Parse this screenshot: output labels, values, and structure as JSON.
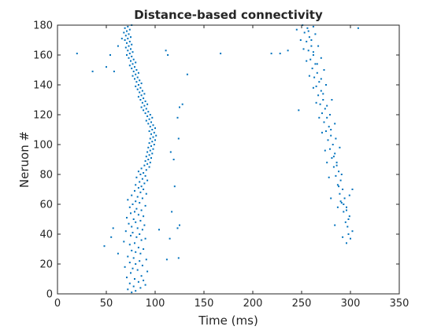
{
  "chart_data": {
    "type": "scatter",
    "title": "Distance-based connectivity",
    "xlabel": "Time (ms)",
    "ylabel": "Neruon #",
    "xlim": [
      0,
      350
    ],
    "ylim": [
      0,
      180
    ],
    "xticks": [
      0,
      50,
      100,
      150,
      200,
      250,
      300,
      350
    ],
    "yticks": [
      0,
      20,
      40,
      60,
      80,
      100,
      120,
      140,
      160,
      180
    ],
    "grid": false,
    "marker_color": "#0072BD",
    "series": [
      {
        "points": [
          [
            76,
            1
          ],
          [
            80,
            2
          ],
          [
            72,
            3
          ],
          [
            85,
            4
          ],
          [
            78,
            5
          ],
          [
            90,
            6
          ],
          [
            74,
            7
          ],
          [
            83,
            8
          ],
          [
            88,
            9
          ],
          [
            79,
            10
          ],
          [
            71,
            11
          ],
          [
            86,
            12
          ],
          [
            75,
            14
          ],
          [
            92,
            15
          ],
          [
            82,
            16
          ],
          [
            77,
            17
          ],
          [
            69,
            18
          ],
          [
            87,
            19
          ],
          [
            80,
            20
          ],
          [
            74,
            21
          ],
          [
            84,
            22
          ],
          [
            91,
            23
          ],
          [
            78,
            24
          ],
          [
            72,
            25
          ],
          [
            85,
            27
          ],
          [
            80,
            28
          ],
          [
            76,
            29
          ],
          [
            88,
            30
          ],
          [
            83,
            31
          ],
          [
            74,
            33
          ],
          [
            79,
            34
          ],
          [
            68,
            35
          ],
          [
            86,
            36
          ],
          [
            90,
            37
          ],
          [
            81,
            38
          ],
          [
            75,
            39
          ],
          [
            84,
            40
          ],
          [
            77,
            41
          ],
          [
            70,
            42
          ],
          [
            87,
            43
          ],
          [
            82,
            44
          ],
          [
            76,
            45
          ],
          [
            89,
            46
          ],
          [
            73,
            47
          ],
          [
            80,
            48
          ],
          [
            85,
            49
          ],
          [
            78,
            50
          ],
          [
            71,
            51
          ],
          [
            88,
            52
          ],
          [
            83,
            53
          ],
          [
            75,
            54
          ],
          [
            79,
            55
          ],
          [
            86,
            56
          ],
          [
            81,
            57
          ],
          [
            74,
            58
          ],
          [
            90,
            59
          ],
          [
            77,
            60
          ],
          [
            84,
            61
          ],
          [
            80,
            62
          ],
          [
            72,
            63
          ],
          [
            87,
            64
          ],
          [
            82,
            65
          ],
          [
            76,
            66
          ],
          [
            91,
            67
          ],
          [
            85,
            68
          ],
          [
            79,
            69
          ],
          [
            88,
            70
          ],
          [
            83,
            71
          ],
          [
            86,
            72
          ],
          [
            80,
            73
          ],
          [
            89,
            74
          ],
          [
            84,
            75
          ],
          [
            92,
            76
          ],
          [
            87,
            77
          ],
          [
            81,
            78
          ],
          [
            90,
            79
          ],
          [
            85,
            80
          ],
          [
            88,
            81
          ],
          [
            83,
            82
          ],
          [
            91,
            83
          ],
          [
            86,
            84
          ],
          [
            94,
            85
          ],
          [
            89,
            86
          ],
          [
            92,
            87
          ],
          [
            95,
            88
          ],
          [
            90,
            89
          ],
          [
            93,
            90
          ],
          [
            96,
            91
          ],
          [
            91,
            92
          ],
          [
            94,
            93
          ],
          [
            97,
            94
          ],
          [
            92,
            95
          ],
          [
            95,
            96
          ],
          [
            98,
            97
          ],
          [
            93,
            98
          ],
          [
            96,
            99
          ],
          [
            99,
            100
          ],
          [
            94,
            101
          ],
          [
            97,
            102
          ],
          [
            100,
            103
          ],
          [
            95,
            104
          ],
          [
            98,
            105
          ],
          [
            101,
            106
          ],
          [
            96,
            107
          ],
          [
            99,
            108
          ],
          [
            94,
            109
          ],
          [
            97,
            110
          ],
          [
            100,
            111
          ],
          [
            95,
            112
          ],
          [
            98,
            113
          ],
          [
            93,
            114
          ],
          [
            96,
            115
          ],
          [
            91,
            116
          ],
          [
            94,
            117
          ],
          [
            97,
            118
          ],
          [
            92,
            119
          ],
          [
            95,
            120
          ],
          [
            90,
            121
          ],
          [
            93,
            122
          ],
          [
            88,
            123
          ],
          [
            91,
            124
          ],
          [
            86,
            125
          ],
          [
            89,
            126
          ],
          [
            92,
            127
          ],
          [
            87,
            128
          ],
          [
            90,
            129
          ],
          [
            85,
            130
          ],
          [
            88,
            131
          ],
          [
            83,
            132
          ],
          [
            86,
            133
          ],
          [
            89,
            134
          ],
          [
            84,
            135
          ],
          [
            87,
            136
          ],
          [
            82,
            137
          ],
          [
            85,
            138
          ],
          [
            80,
            139
          ],
          [
            83,
            140
          ],
          [
            86,
            141
          ],
          [
            81,
            142
          ],
          [
            84,
            143
          ],
          [
            79,
            144
          ],
          [
            82,
            145
          ],
          [
            77,
            146
          ],
          [
            80,
            147
          ],
          [
            83,
            148
          ],
          [
            78,
            149
          ],
          [
            81,
            150
          ],
          [
            76,
            151
          ],
          [
            79,
            152
          ],
          [
            74,
            153
          ],
          [
            77,
            154
          ],
          [
            80,
            155
          ],
          [
            75,
            156
          ],
          [
            78,
            157
          ],
          [
            73,
            158
          ],
          [
            76,
            159
          ],
          [
            71,
            160
          ],
          [
            74,
            161
          ],
          [
            77,
            162
          ],
          [
            72,
            163
          ],
          [
            75,
            164
          ],
          [
            70,
            165
          ],
          [
            73,
            166
          ],
          [
            76,
            167
          ],
          [
            71,
            168
          ],
          [
            74,
            169
          ],
          [
            69,
            170
          ],
          [
            72,
            171
          ],
          [
            75,
            172
          ],
          [
            70,
            173
          ],
          [
            73,
            174
          ],
          [
            68,
            175
          ],
          [
            71,
            176
          ],
          [
            74,
            177
          ],
          [
            69,
            178
          ],
          [
            72,
            179
          ],
          [
            76,
            180
          ],
          [
            57,
            44
          ],
          [
            48,
            32
          ],
          [
            55,
            38
          ],
          [
            62,
            27
          ],
          [
            58,
            149
          ],
          [
            54,
            160
          ],
          [
            62,
            166
          ],
          [
            50,
            152
          ],
          [
            66,
            171
          ],
          [
            112,
            23
          ],
          [
            124,
            24
          ],
          [
            115,
            37
          ],
          [
            123,
            44
          ],
          [
            125,
            46
          ],
          [
            117,
            55
          ],
          [
            120,
            72
          ],
          [
            119,
            90
          ],
          [
            116,
            95
          ],
          [
            124,
            104
          ],
          [
            123,
            118
          ],
          [
            125,
            125
          ],
          [
            128,
            127
          ],
          [
            133,
            147
          ],
          [
            111,
            163
          ],
          [
            113,
            160
          ],
          [
            20,
            161
          ],
          [
            36,
            149
          ],
          [
            167,
            161
          ],
          [
            104,
            43
          ],
          [
            300,
            37
          ],
          [
            298,
            40
          ],
          [
            302,
            42
          ],
          [
            297,
            45
          ],
          [
            295,
            48
          ],
          [
            299,
            52
          ],
          [
            293,
            55
          ],
          [
            296,
            58
          ],
          [
            291,
            61
          ],
          [
            294,
            64
          ],
          [
            289,
            67
          ],
          [
            292,
            70
          ],
          [
            287,
            73
          ],
          [
            290,
            76
          ],
          [
            285,
            79
          ],
          [
            288,
            82
          ],
          [
            283,
            85
          ],
          [
            286,
            88
          ],
          [
            281,
            91
          ],
          [
            284,
            94
          ],
          [
            279,
            97
          ],
          [
            282,
            100
          ],
          [
            277,
            103
          ],
          [
            280,
            106
          ],
          [
            275,
            109
          ],
          [
            278,
            112
          ],
          [
            273,
            115
          ],
          [
            276,
            118
          ],
          [
            271,
            121
          ],
          [
            274,
            124
          ],
          [
            269,
            127
          ],
          [
            272,
            130
          ],
          [
            267,
            133
          ],
          [
            270,
            136
          ],
          [
            265,
            139
          ],
          [
            268,
            142
          ],
          [
            263,
            145
          ],
          [
            266,
            148
          ],
          [
            261,
            151
          ],
          [
            264,
            154
          ],
          [
            259,
            157
          ],
          [
            262,
            160
          ],
          [
            257,
            163
          ],
          [
            260,
            166
          ],
          [
            255,
            169
          ],
          [
            258,
            172
          ],
          [
            253,
            175
          ],
          [
            256,
            178
          ],
          [
            251,
            180
          ],
          [
            298,
            50
          ],
          [
            296,
            56
          ],
          [
            293,
            60
          ],
          [
            299,
            66
          ],
          [
            288,
            72
          ],
          [
            291,
            80
          ],
          [
            286,
            86
          ],
          [
            283,
            92
          ],
          [
            289,
            98
          ],
          [
            285,
            104
          ],
          [
            280,
            110
          ],
          [
            284,
            114
          ],
          [
            279,
            120
          ],
          [
            276,
            126
          ],
          [
            281,
            130
          ],
          [
            272,
            134
          ],
          [
            275,
            140
          ],
          [
            270,
            144
          ],
          [
            273,
            150
          ],
          [
            266,
            154
          ],
          [
            270,
            158
          ],
          [
            262,
            162
          ],
          [
            267,
            166
          ],
          [
            260,
            170
          ],
          [
            264,
            174
          ],
          [
            257,
            176
          ],
          [
            262,
            179
          ],
          [
            292,
            38
          ],
          [
            287,
            58
          ],
          [
            280,
            64
          ],
          [
            278,
            78
          ],
          [
            274,
            96
          ],
          [
            271,
            108
          ],
          [
            268,
            118
          ],
          [
            265,
            128
          ],
          [
            262,
            138
          ],
          [
            258,
            146
          ],
          [
            255,
            156
          ],
          [
            252,
            164
          ],
          [
            249,
            170
          ],
          [
            245,
            177
          ],
          [
            284,
            46
          ],
          [
            290,
            62
          ],
          [
            276,
            88
          ],
          [
            247,
            123
          ],
          [
            219,
            161
          ],
          [
            228,
            161
          ],
          [
            236,
            163
          ],
          [
            308,
            178
          ],
          [
            302,
            70
          ],
          [
            296,
            34
          ]
        ]
      }
    ]
  }
}
